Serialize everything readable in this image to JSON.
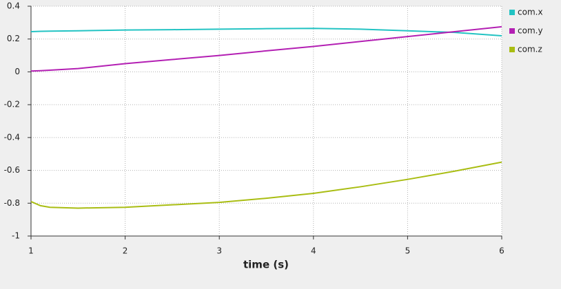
{
  "chart_data": {
    "type": "line",
    "xlabel": "time (s)",
    "x": [
      1,
      1.1,
      1.2,
      1.5,
      2,
      2.5,
      3,
      3.5,
      4,
      4.5,
      5,
      5.5,
      6
    ],
    "series": [
      {
        "name": "com.x",
        "color": "#22c3c3",
        "values": [
          0.245,
          0.247,
          0.248,
          0.25,
          0.255,
          0.257,
          0.26,
          0.263,
          0.265,
          0.26,
          0.25,
          0.24,
          0.22
        ]
      },
      {
        "name": "com.y",
        "color": "#b31fb3",
        "values": [
          0.005,
          0.007,
          0.01,
          0.02,
          0.05,
          0.075,
          0.1,
          0.128,
          0.155,
          0.185,
          0.215,
          0.245,
          0.275
        ]
      },
      {
        "name": "com.z",
        "color": "#a9bd12",
        "values": [
          -0.79,
          -0.815,
          -0.825,
          -0.83,
          -0.825,
          -0.81,
          -0.795,
          -0.77,
          -0.74,
          -0.7,
          -0.655,
          -0.605,
          -0.55
        ]
      }
    ],
    "xlim": [
      1,
      6
    ],
    "xticks": [
      1,
      2,
      3,
      4,
      5,
      6
    ],
    "ylim": [
      -1,
      0.4
    ],
    "yticks": [
      -1,
      -0.8,
      -0.6,
      -0.4,
      -0.2,
      0,
      0.2,
      0.4
    ],
    "grid": true,
    "legend": "right"
  }
}
